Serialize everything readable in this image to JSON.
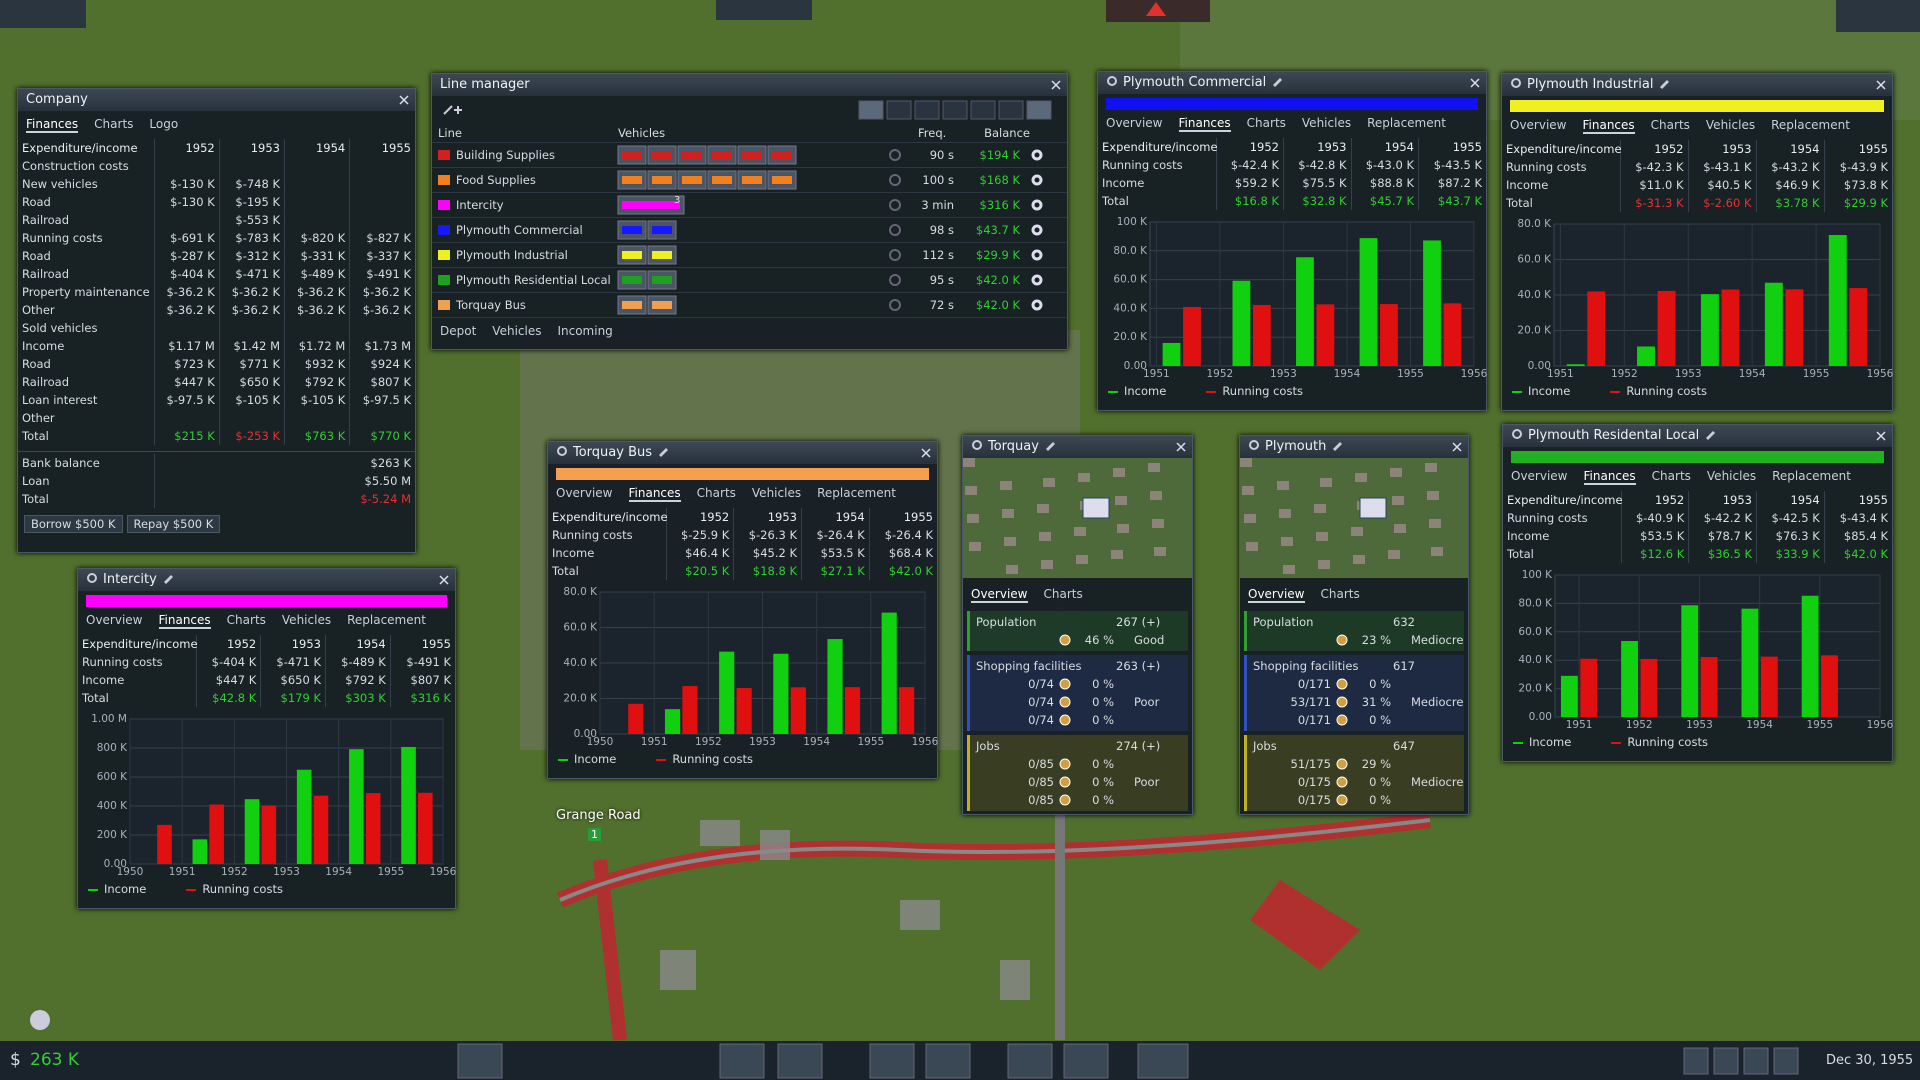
{
  "company": {
    "title": "Company",
    "tabs": [
      "Finances",
      "Charts",
      "Logo"
    ],
    "active_tab": 0,
    "table": {
      "header": [
        "Expenditure/income",
        "1952",
        "1953",
        "1954",
        "1955"
      ],
      "rows": [
        [
          "Construction costs",
          null,
          null,
          null,
          null
        ],
        [
          "New vehicles",
          "$-130 K",
          "$-748 K",
          null,
          null
        ],
        [
          "Road",
          "$-130 K",
          "$-195 K",
          null,
          null
        ],
        [
          "Railroad",
          null,
          "$-553 K",
          null,
          null
        ],
        [
          "Running costs",
          "$-691 K",
          "$-783 K",
          "$-820 K",
          "$-827 K"
        ],
        [
          "Road",
          "$-287 K",
          "$-312 K",
          "$-331 K",
          "$-337 K"
        ],
        [
          "Railroad",
          "$-404 K",
          "$-471 K",
          "$-489 K",
          "$-491 K"
        ],
        [
          "Property maintenance",
          "$-36.2 K",
          "$-36.2 K",
          "$-36.2 K",
          "$-36.2 K"
        ],
        [
          "Other",
          "$-36.2 K",
          "$-36.2 K",
          "$-36.2 K",
          "$-36.2 K"
        ],
        [
          "Sold vehicles",
          null,
          null,
          null,
          null
        ],
        [
          "Income",
          "$1.17 M",
          "$1.42 M",
          "$1.72 M",
          "$1.73 M"
        ],
        [
          "Road",
          "$723 K",
          "$771 K",
          "$932 K",
          "$924 K"
        ],
        [
          "Railroad",
          "$447 K",
          "$650 K",
          "$792 K",
          "$807 K"
        ],
        [
          "Loan interest",
          "$-97.5 K",
          "$-105 K",
          "$-105 K",
          "$-97.5 K"
        ],
        [
          "Other",
          null,
          null,
          null,
          null
        ],
        [
          "Total",
          "$215 K",
          "$-253 K",
          "$763 K",
          "$770 K"
        ]
      ]
    },
    "bank": {
      "rows": [
        [
          "Bank balance",
          "$263 K"
        ],
        [
          "Loan",
          "$5.50 M"
        ],
        [
          "Total",
          "$-5.24 M"
        ]
      ]
    },
    "buttons": [
      "Borrow $500 K",
      "Repay $500 K"
    ]
  },
  "line_manager": {
    "title": "Line manager",
    "columns": [
      "Line",
      "Vehicles",
      "Freq.",
      "Balance"
    ],
    "lines": [
      {
        "name": "Building Supplies",
        "color": "#d02020",
        "vehicles": 6,
        "freq": "90 s",
        "balance": "$194 K"
      },
      {
        "name": "Food Supplies",
        "color": "#f08020",
        "vehicles": 6,
        "freq": "100 s",
        "balance": "$168 K"
      },
      {
        "name": "Intercity",
        "color": "#ff00ff",
        "vehicles": 1,
        "vehicle_label": "3",
        "freq": "3 min",
        "balance": "$316 K"
      },
      {
        "name": "Plymouth Commercial",
        "color": "#1818ff",
        "vehicles": 2,
        "freq": "98 s",
        "balance": "$43.7 K"
      },
      {
        "name": "Plymouth Industrial",
        "color": "#f0f020",
        "vehicles": 2,
        "freq": "112 s",
        "balance": "$29.9 K"
      },
      {
        "name": "Plymouth Residential Local",
        "color": "#20a020",
        "vehicles": 2,
        "freq": "95 s",
        "balance": "$42.0 K"
      },
      {
        "name": "Torquay Bus",
        "color": "#f0a050",
        "vehicles": 2,
        "freq": "72 s",
        "balance": "$42.0 K"
      }
    ],
    "footer_tabs": [
      "Depot",
      "Vehicles",
      "Incoming"
    ]
  },
  "plymouth_commercial": {
    "title": "Plymouth Commercial",
    "color": "#1010f0",
    "tabs": [
      "Overview",
      "Finances",
      "Charts",
      "Vehicles",
      "Replacement"
    ],
    "active_tab": 1,
    "table": {
      "header": [
        "Expenditure/income",
        "1952",
        "1953",
        "1954",
        "1955"
      ],
      "rows": [
        [
          "Running costs",
          "$-42.4 K",
          "$-42.8 K",
          "$-43.0 K",
          "$-43.5 K"
        ],
        [
          "Income",
          "$59.2 K",
          "$75.5 K",
          "$88.8 K",
          "$87.2 K"
        ],
        [
          "Total",
          "$16.8 K",
          "$32.8 K",
          "$45.7 K",
          "$43.7 K"
        ]
      ]
    },
    "chart": {
      "type": "bar",
      "xlim": [
        1950.9,
        1956
      ],
      "xticks": [
        1951,
        1952,
        1953,
        1954,
        1955,
        1956
      ],
      "x": [
        1951.4,
        1952.5,
        1953.5,
        1954.5,
        1955.5
      ],
      "ylim": [
        0,
        100
      ],
      "yticks": [
        {
          "value": 0,
          "label": "0.00"
        },
        {
          "value": 20,
          "label": "20.0 K"
        },
        {
          "value": 40,
          "label": "40.0 K"
        },
        {
          "value": 60,
          "label": "60.0 K"
        },
        {
          "value": 80,
          "label": "80.0 K"
        },
        {
          "value": 100,
          "label": "100 K"
        }
      ],
      "series": [
        {
          "name": "Income",
          "color": "#10d010",
          "values": [
            16,
            59.2,
            75.5,
            88.8,
            87.2
          ]
        },
        {
          "name": "Running costs",
          "color": "#e01010",
          "values": [
            41,
            42.4,
            42.8,
            43.0,
            43.5
          ]
        }
      ]
    }
  },
  "plymouth_industrial": {
    "title": "Plymouth Industrial",
    "color": "#f0f020",
    "tabs": [
      "Overview",
      "Finances",
      "Charts",
      "Vehicles",
      "Replacement"
    ],
    "active_tab": 1,
    "table": {
      "header": [
        "Expenditure/income",
        "1952",
        "1953",
        "1954",
        "1955"
      ],
      "rows": [
        [
          "Running costs",
          "$-42.3 K",
          "$-43.1 K",
          "$-43.2 K",
          "$-43.9 K"
        ],
        [
          "Income",
          "$11.0 K",
          "$40.5 K",
          "$46.9 K",
          "$73.8 K"
        ],
        [
          "Total",
          "$-31.3 K",
          "$-2.60 K",
          "$3.78 K",
          "$29.9 K"
        ]
      ]
    },
    "chart": {
      "type": "bar",
      "xlim": [
        1950.9,
        1956
      ],
      "xticks": [
        1951,
        1952,
        1953,
        1954,
        1955,
        1956
      ],
      "x": [
        1951.4,
        1952.5,
        1953.5,
        1954.5,
        1955.5
      ],
      "ylim": [
        0,
        80
      ],
      "yticks": [
        {
          "value": 0,
          "label": "0.00"
        },
        {
          "value": 20,
          "label": "20.0 K"
        },
        {
          "value": 40,
          "label": "40.0 K"
        },
        {
          "value": 60,
          "label": "60.0 K"
        },
        {
          "value": 80,
          "label": "80.0 K"
        }
      ],
      "series": [
        {
          "name": "Income",
          "color": "#10d010",
          "values": [
            1,
            11.0,
            40.5,
            46.9,
            73.8
          ]
        },
        {
          "name": "Running costs",
          "color": "#e01010",
          "values": [
            42,
            42.3,
            43.1,
            43.2,
            43.9
          ]
        }
      ]
    }
  },
  "plymouth_residential": {
    "title": "Plymouth Residental Local",
    "color": "#20b020",
    "tabs": [
      "Overview",
      "Finances",
      "Charts",
      "Vehicles",
      "Replacement"
    ],
    "active_tab": 1,
    "table": {
      "header": [
        "Expenditure/income",
        "1952",
        "1953",
        "1954",
        "1955"
      ],
      "rows": [
        [
          "Running costs",
          "$-40.9 K",
          "$-42.2 K",
          "$-42.5 K",
          "$-43.4 K"
        ],
        [
          "Income",
          "$53.5 K",
          "$78.7 K",
          "$76.3 K",
          "$85.4 K"
        ],
        [
          "Total",
          "$12.6 K",
          "$36.5 K",
          "$33.9 K",
          "$42.0 K"
        ]
      ]
    },
    "chart": {
      "type": "bar",
      "xlim": [
        1950.6,
        1956
      ],
      "xticks": [
        1951,
        1952,
        1953,
        1954,
        1955,
        1956
      ],
      "x": [
        1951,
        1952,
        1953,
        1954,
        1955
      ],
      "ylim": [
        0,
        100
      ],
      "yticks": [
        {
          "value": 0,
          "label": "0.00"
        },
        {
          "value": 20,
          "label": "20.0 K"
        },
        {
          "value": 40,
          "label": "40.0 K"
        },
        {
          "value": 60,
          "label": "60.0 K"
        },
        {
          "value": 80,
          "label": "80.0 K"
        },
        {
          "value": 100,
          "label": "100 K"
        }
      ],
      "series": [
        {
          "name": "Income",
          "color": "#10d010",
          "values": [
            29,
            53.5,
            78.7,
            76.3,
            85.4
          ]
        },
        {
          "name": "Running costs",
          "color": "#e01010",
          "values": [
            41,
            40.9,
            42.2,
            42.5,
            43.4
          ]
        }
      ]
    }
  },
  "torquay_bus": {
    "title": "Torquay Bus",
    "color": "#f5a050",
    "tabs": [
      "Overview",
      "Finances",
      "Charts",
      "Vehicles",
      "Replacement"
    ],
    "active_tab": 1,
    "table": {
      "header": [
        "Expenditure/income",
        "1952",
        "1953",
        "1954",
        "1955"
      ],
      "rows": [
        [
          "Running costs",
          "$-25.9 K",
          "$-26.3 K",
          "$-26.4 K",
          "$-26.4 K"
        ],
        [
          "Income",
          "$46.4 K",
          "$45.2 K",
          "$53.5 K",
          "$68.4 K"
        ],
        [
          "Total",
          "$20.5 K",
          "$18.8 K",
          "$27.1 K",
          "$42.0 K"
        ]
      ]
    },
    "chart": {
      "type": "bar",
      "xlim": [
        1950,
        1956
      ],
      "xticks": [
        1950,
        1951,
        1952,
        1953,
        1954,
        1955,
        1956
      ],
      "x": [
        1950.5,
        1951.5,
        1952.5,
        1953.5,
        1954.5,
        1955.5
      ],
      "ylim": [
        0,
        80
      ],
      "yticks": [
        {
          "value": 0,
          "label": "0.00"
        },
        {
          "value": 20,
          "label": "20.0 K"
        },
        {
          "value": 40,
          "label": "40.0 K"
        },
        {
          "value": 60,
          "label": "60.0 K"
        },
        {
          "value": 80,
          "label": "80.0 K"
        }
      ],
      "series": [
        {
          "name": "Income",
          "color": "#10d010",
          "values": [
            0,
            14,
            46.4,
            45.2,
            53.5,
            68.4
          ]
        },
        {
          "name": "Running costs",
          "color": "#e01010",
          "values": [
            17,
            27,
            25.9,
            26.3,
            26.4,
            26.4
          ]
        }
      ]
    }
  },
  "intercity": {
    "title": "Intercity",
    "color": "#ff00ff",
    "tabs": [
      "Overview",
      "Finances",
      "Charts",
      "Vehicles",
      "Replacement"
    ],
    "active_tab": 1,
    "table": {
      "header": [
        "Expenditure/income",
        "1952",
        "1953",
        "1954",
        "1955"
      ],
      "rows": [
        [
          "Running costs",
          "$-404 K",
          "$-471 K",
          "$-489 K",
          "$-491 K"
        ],
        [
          "Income",
          "$447 K",
          "$650 K",
          "$792 K",
          "$807 K"
        ],
        [
          "Total",
          "$42.8 K",
          "$179 K",
          "$303 K",
          "$316 K"
        ]
      ]
    },
    "chart": {
      "type": "bar",
      "xlim": [
        1950,
        1956
      ],
      "xticks": [
        1950,
        1951,
        1952,
        1953,
        1954,
        1955,
        1956
      ],
      "x": [
        1950.5,
        1951.5,
        1952.5,
        1953.5,
        1954.5,
        1955.5
      ],
      "ylim": [
        0,
        1000
      ],
      "yticks": [
        {
          "value": 0,
          "label": "0.00"
        },
        {
          "value": 200,
          "label": "200 K"
        },
        {
          "value": 400,
          "label": "400 K"
        },
        {
          "value": 600,
          "label": "600 K"
        },
        {
          "value": 800,
          "label": "800 K"
        },
        {
          "value": 1000,
          "label": "1.00 M"
        }
      ],
      "series": [
        {
          "name": "Income",
          "color": "#10d010",
          "values": [
            0,
            170,
            447,
            650,
            792,
            807
          ]
        },
        {
          "name": "Running costs",
          "color": "#e01010",
          "values": [
            270,
            410,
            404,
            471,
            489,
            491
          ]
        }
      ]
    }
  },
  "torquay": {
    "title": "Torquay",
    "tabs": [
      "Overview",
      "Charts"
    ],
    "active_tab": 0,
    "sections": [
      {
        "label": "Population",
        "value": "267 (+)",
        "color": "#30a030",
        "rows": [
          {
            "pct": "46 %",
            "rating": "Good"
          }
        ]
      },
      {
        "label": "Shopping facilities",
        "value": "263 (+)",
        "color": "#3050c0",
        "rows": [
          {
            "count": "0/74",
            "pct": "0 %"
          },
          {
            "count": "0/74",
            "pct": "0 %",
            "rating": "Poor"
          },
          {
            "count": "0/74",
            "pct": "0 %"
          }
        ]
      },
      {
        "label": "Jobs",
        "value": "274 (+)",
        "color": "#c0b020",
        "rows": [
          {
            "count": "0/85",
            "pct": "0 %"
          },
          {
            "count": "0/85",
            "pct": "0 %",
            "rating": "Poor"
          },
          {
            "count": "0/85",
            "pct": "0 %"
          }
        ]
      }
    ]
  },
  "plymouth": {
    "title": "Plymouth",
    "tabs": [
      "Overview",
      "Charts"
    ],
    "active_tab": 0,
    "sections": [
      {
        "label": "Population",
        "value": "632",
        "color": "#30a030",
        "rows": [
          {
            "pct": "23 %",
            "rating": "Mediocre"
          }
        ]
      },
      {
        "label": "Shopping facilities",
        "value": "617",
        "color": "#3050c0",
        "rows": [
          {
            "count": "0/171",
            "pct": "0 %"
          },
          {
            "count": "53/171",
            "pct": "31 %",
            "rating": "Mediocre"
          },
          {
            "count": "0/171",
            "pct": "0 %"
          }
        ]
      },
      {
        "label": "Jobs",
        "value": "647",
        "color": "#c0b020",
        "rows": [
          {
            "count": "51/175",
            "pct": "29 %"
          },
          {
            "count": "0/175",
            "pct": "0 %",
            "rating": "Mediocre"
          },
          {
            "count": "0/175",
            "pct": "0 %"
          }
        ]
      }
    ]
  },
  "map_labels": [
    "Grange Road",
    "1"
  ],
  "hud": {
    "money_symbol": "$",
    "money": "263 K",
    "date": "Dec 30, 1955"
  }
}
